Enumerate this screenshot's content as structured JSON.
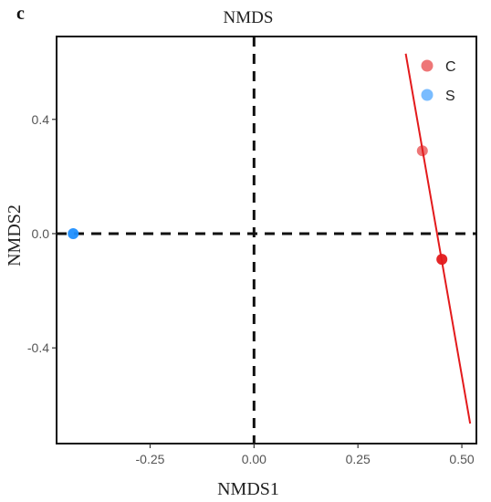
{
  "panel_label": "c",
  "chart_data": {
    "type": "scatter",
    "title": "NMDS",
    "xlabel": "NMDS1",
    "ylabel": "NMDS2",
    "xlim": [
      -0.475,
      0.535
    ],
    "ylim": [
      -0.735,
      0.69
    ],
    "xticks": [
      -0.25,
      0.0,
      0.25,
      0.5
    ],
    "xtick_labels": [
      "-0.25",
      "0.00",
      "0.25",
      "0.50"
    ],
    "yticks": [
      -0.4,
      0.0,
      0.4
    ],
    "ytick_labels": [
      "-0.4",
      "0.0",
      "0.4"
    ],
    "grid": false,
    "reference_lines": {
      "x": 0.0,
      "y": 0.0,
      "style": "dashed"
    },
    "legend": {
      "position": "top-right"
    },
    "series": [
      {
        "name": "C",
        "color": "#e31a1c",
        "points": [
          {
            "x": 0.405,
            "y": 0.29
          },
          {
            "x": 0.452,
            "y": -0.09
          }
        ],
        "fit_line": {
          "x": [
            0.365,
            0.52
          ],
          "y": [
            0.63,
            -0.665
          ]
        }
      },
      {
        "name": "S",
        "color": "#1f8fff",
        "points": [
          {
            "x": -0.435,
            "y": 0.0
          }
        ]
      }
    ]
  }
}
